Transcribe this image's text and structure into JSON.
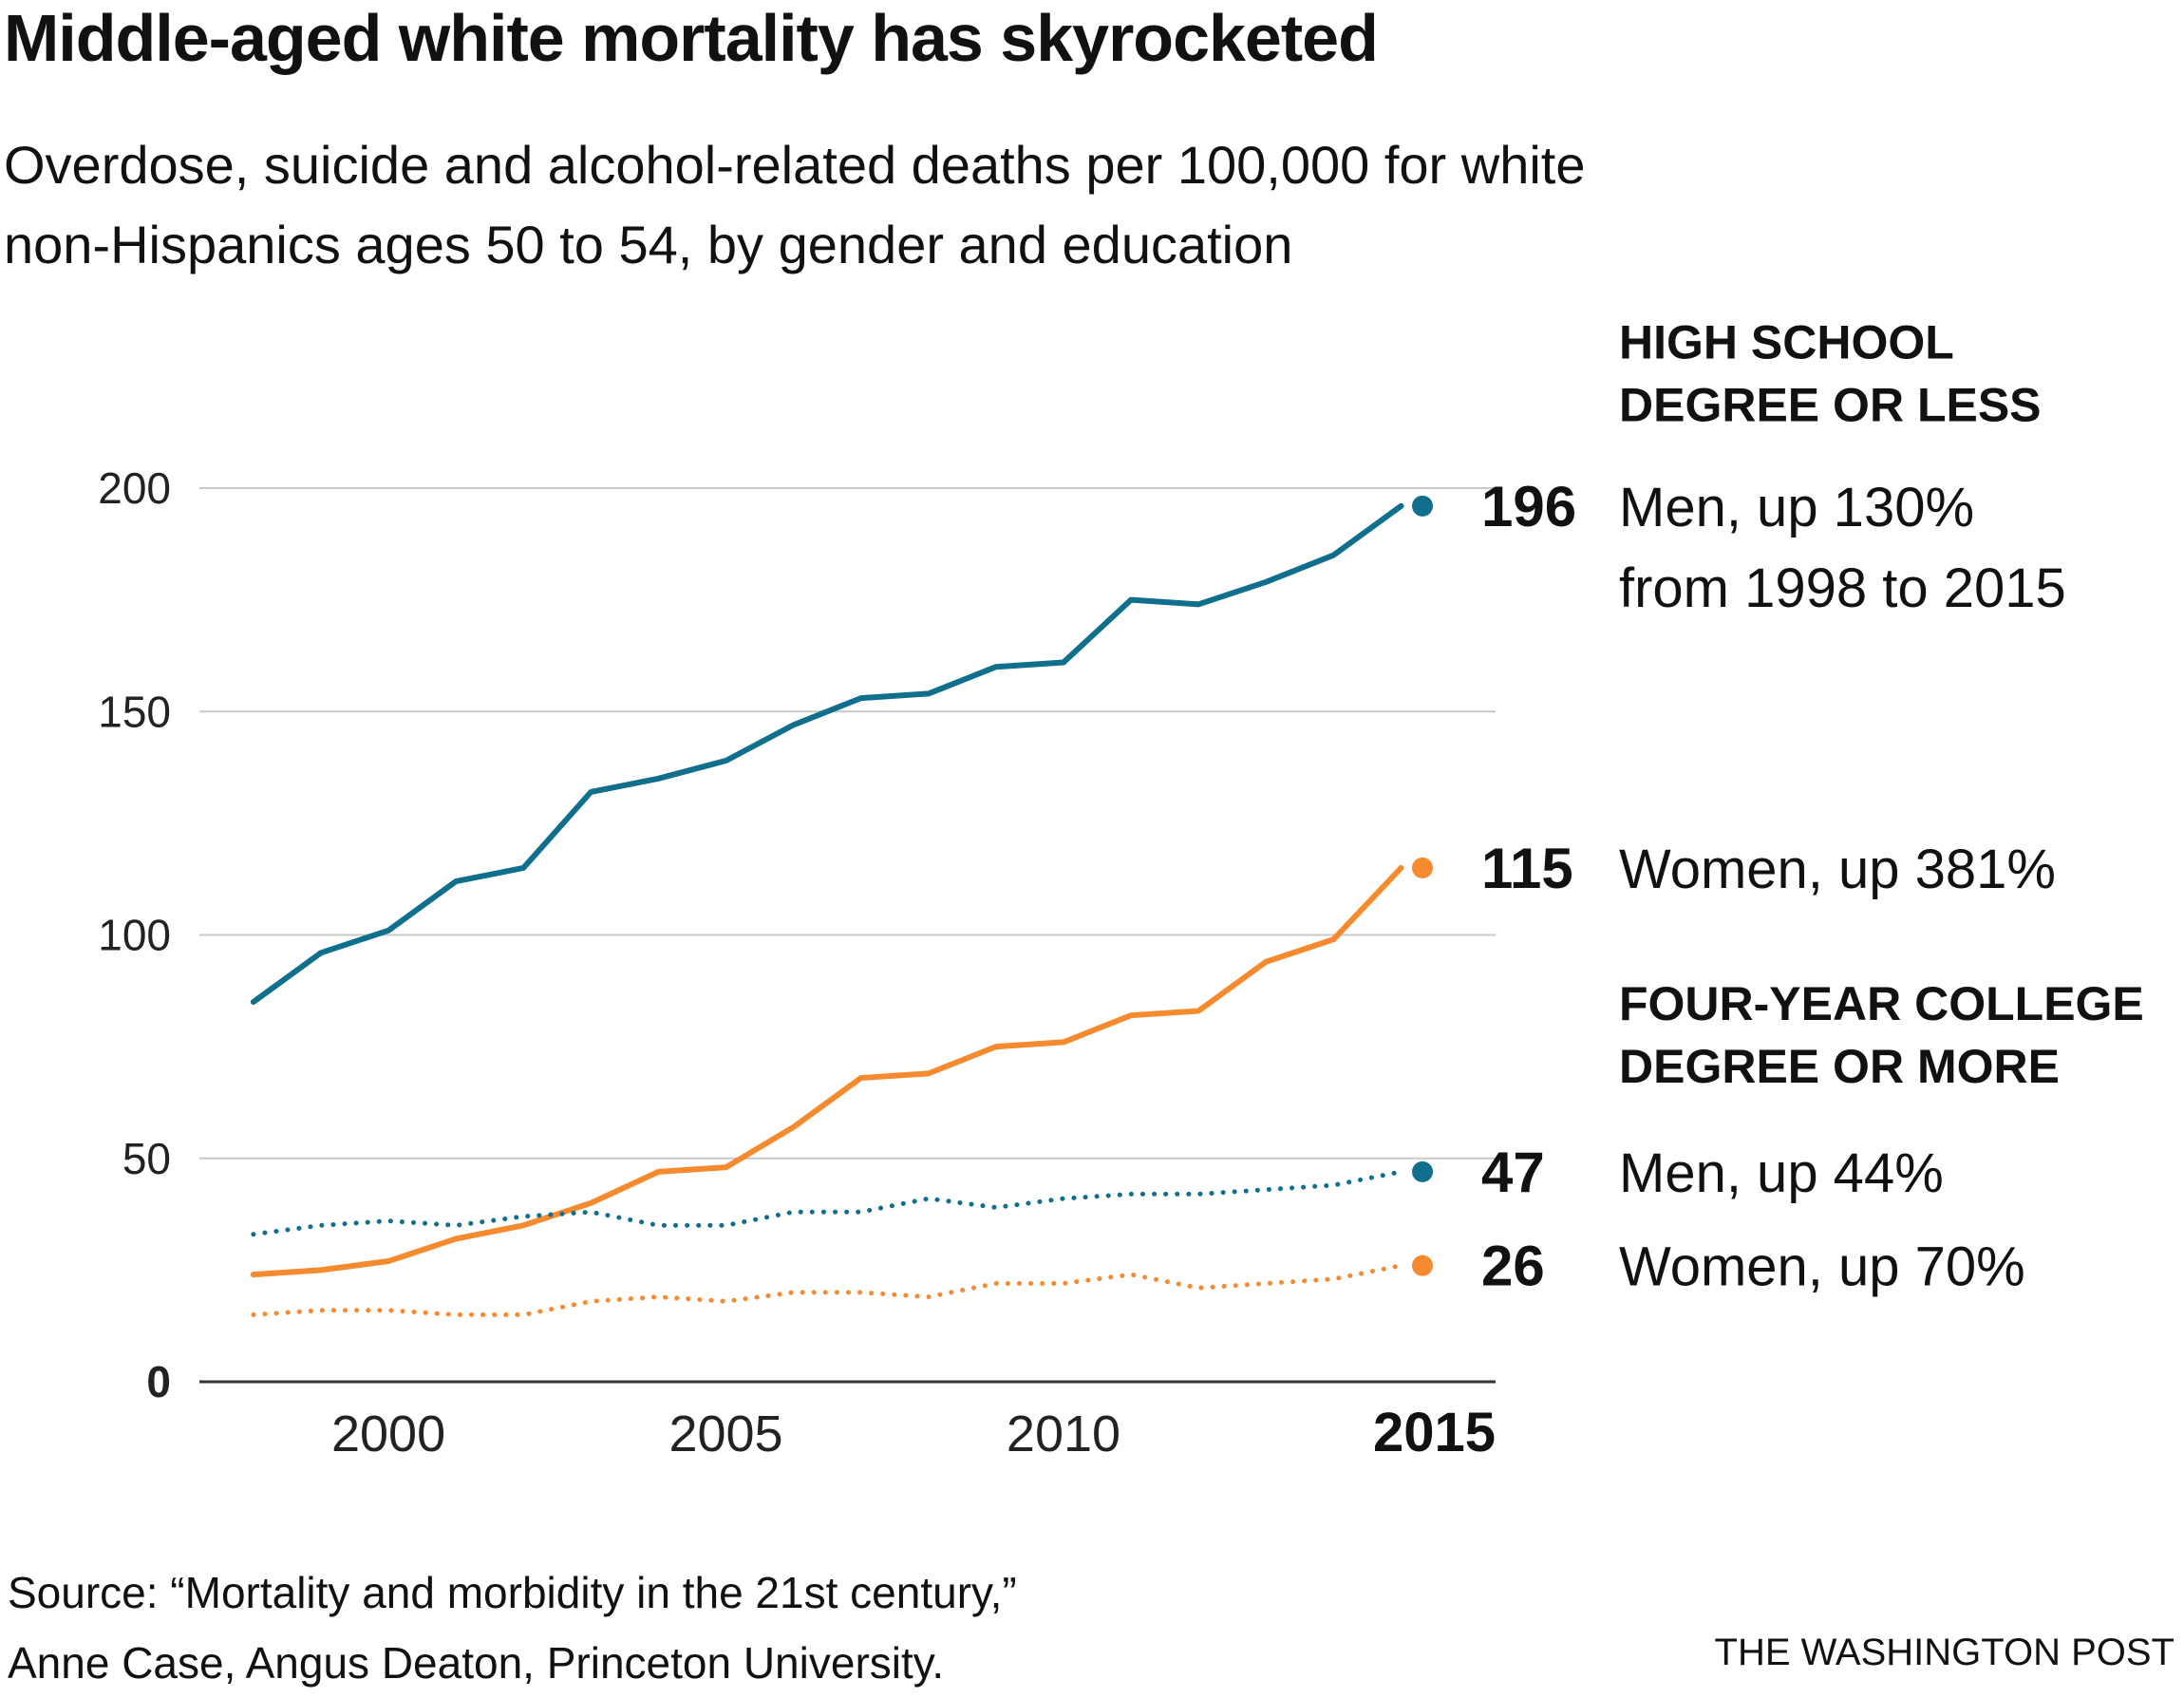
{
  "header": {
    "title": "Middle-aged white mortality has skyrocketed",
    "subtitle_line1": "Overdose, suicide and alcohol-related deaths per 100,000 for white",
    "subtitle_line2": "non-Hispanics ages 50 to 54, by gender and education"
  },
  "footer": {
    "source_line1": "Source: “Mortality and morbidity in the 21st century,”",
    "source_line2": "Anne Case, Angus Deaton, Princeton University.",
    "credit": "THE WASHINGTON POST"
  },
  "colors": {
    "men": "#0f6f8c",
    "women": "#f58a2e",
    "grid": "#c8c8c8",
    "axis": "#333333"
  },
  "chart_data": {
    "type": "line",
    "title": "Middle-aged white mortality has skyrocketed",
    "xlabel": "",
    "ylabel": "",
    "xlim": [
      1997.2,
      2016.4
    ],
    "ylim": [
      0,
      200
    ],
    "y_ticks": [
      {
        "value": 0,
        "label": "0",
        "bold": true
      },
      {
        "value": 50,
        "label": "50",
        "bold": false
      },
      {
        "value": 100,
        "label": "100",
        "bold": false
      },
      {
        "value": 150,
        "label": "150",
        "bold": false
      },
      {
        "value": 200,
        "label": "200",
        "bold": false
      }
    ],
    "x_ticks": [
      {
        "value": 2000,
        "label": "2000",
        "bold": false
      },
      {
        "value": 2005,
        "label": "2005",
        "bold": false
      },
      {
        "value": 2010,
        "label": "2010",
        "bold": false
      },
      {
        "value": 2015,
        "label": "2015",
        "bold": true
      }
    ],
    "grid": true,
    "x": [
      1998,
      1999,
      2000,
      2001,
      2002,
      2003,
      2004,
      2005,
      2006,
      2007,
      2008,
      2009,
      2010,
      2011,
      2012,
      2013,
      2014,
      2015
    ],
    "groups": [
      {
        "heading_line1": "HIGH SCHOOL",
        "heading_line2": "DEGREE OR LESS",
        "anchor_value": 229
      },
      {
        "heading_line1": "FOUR-YEAR COLLEGE",
        "heading_line2": "DEGREE OR MORE",
        "anchor_value": 81
      }
    ],
    "series": [
      {
        "name": "High school or less, men",
        "color_key": "men",
        "style": "solid",
        "values": [
          85,
          96,
          101,
          112,
          115,
          132,
          135,
          139,
          147,
          153,
          154,
          160,
          161,
          175,
          174,
          179,
          185,
          196
        ],
        "end_value": "196",
        "label_line1": "Men, up 130%",
        "label_line2": "from 1998 to 2015"
      },
      {
        "name": "High school or less, women",
        "color_key": "women",
        "style": "solid",
        "values": [
          24,
          25,
          27,
          32,
          35,
          40,
          47,
          48,
          57,
          68,
          69,
          75,
          76,
          82,
          83,
          94,
          99,
          115
        ],
        "end_value": "115",
        "label_line1": "Women, up 381%",
        "label_line2": ""
      },
      {
        "name": "College degree or more, men",
        "color_key": "men",
        "style": "dotted",
        "values": [
          33,
          35,
          36,
          35,
          37,
          38,
          35,
          35,
          38,
          38,
          41,
          39,
          41,
          42,
          42,
          43,
          44,
          47
        ],
        "end_value": "47",
        "label_line1": "Men, up 44%",
        "label_line2": ""
      },
      {
        "name": "College degree or more, women",
        "color_key": "women",
        "style": "dotted",
        "values": [
          15,
          16,
          16,
          15,
          15,
          18,
          19,
          18,
          20,
          20,
          19,
          22,
          22,
          24,
          21,
          22,
          23,
          26
        ],
        "end_value": "26",
        "label_line1": "Women, up 70%",
        "label_line2": ""
      }
    ]
  }
}
